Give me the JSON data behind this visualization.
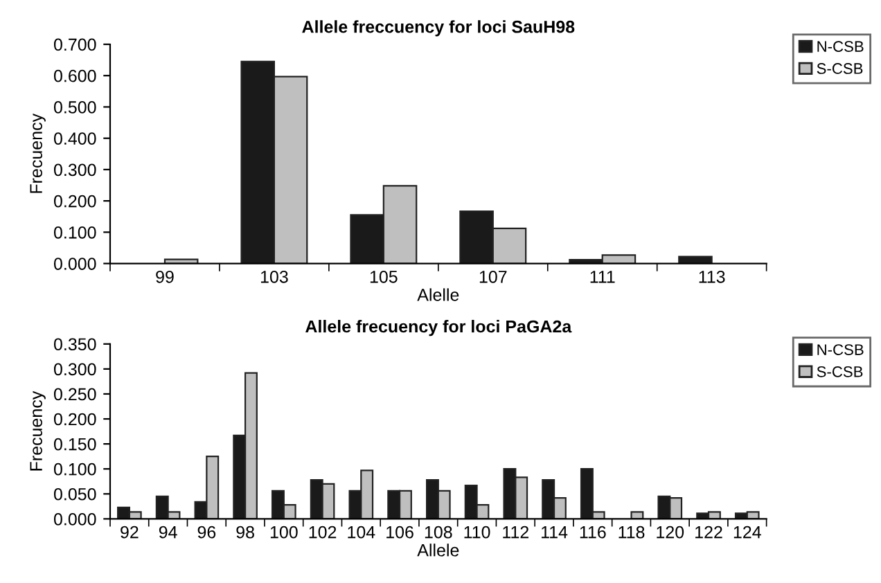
{
  "chart_data": [
    {
      "type": "bar",
      "title": "Allele freccuency for loci SauH98",
      "xlabel": "Alelle",
      "ylabel": "Frecuency",
      "categories": [
        "99",
        "103",
        "105",
        "107",
        "111",
        "113"
      ],
      "series": [
        {
          "name": "N-CSB",
          "color": "#1a1a1a",
          "values": [
            null,
            0.645,
            0.155,
            0.167,
            0.012,
            0.022
          ]
        },
        {
          "name": "S-CSB",
          "color": "#bfbfbf",
          "values": [
            0.013,
            0.597,
            0.248,
            0.112,
            0.027,
            null
          ]
        }
      ],
      "ylim": [
        0,
        0.7
      ],
      "yticks": [
        {
          "value": 0,
          "label": "0.000"
        },
        {
          "value": 0.1,
          "label": "0.100"
        },
        {
          "value": 0.2,
          "label": "0.200"
        },
        {
          "value": 0.3,
          "label": "0.300"
        },
        {
          "value": 0.4,
          "label": "0.400"
        },
        {
          "value": 0.5,
          "label": "0.500"
        },
        {
          "value": 0.6,
          "label": "0.600"
        },
        {
          "value": 0.7,
          "label": "0.700"
        }
      ],
      "grid": false,
      "legend": "top right"
    },
    {
      "type": "bar",
      "title": "Allele frecuency for loci PaGA2a",
      "xlabel": "Allele",
      "ylabel": "Frecuency",
      "categories": [
        "92",
        "94",
        "96",
        "98",
        "100",
        "102",
        "104",
        "106",
        "108",
        "110",
        "112",
        "114",
        "116",
        "118",
        "120",
        "122",
        "124"
      ],
      "series": [
        {
          "name": "N-CSB",
          "color": "#1a1a1a",
          "values": [
            0.023,
            0.045,
            0.034,
            0.167,
            0.056,
            0.078,
            0.056,
            0.056,
            0.078,
            0.067,
            0.1,
            0.078,
            0.1,
            null,
            0.045,
            0.011,
            0.011
          ]
        },
        {
          "name": "S-CSB",
          "color": "#bfbfbf",
          "values": [
            0.014,
            0.014,
            0.125,
            0.292,
            0.028,
            0.07,
            0.097,
            0.056,
            0.056,
            0.028,
            0.083,
            0.042,
            0.014,
            0.014,
            0.042,
            0.014,
            0.014
          ]
        }
      ],
      "ylim": [
        0,
        0.35
      ],
      "yticks": [
        {
          "value": 0,
          "label": "0.000"
        },
        {
          "value": 0.05,
          "label": "0.050"
        },
        {
          "value": 0.1,
          "label": "0.100"
        },
        {
          "value": 0.15,
          "label": "0.150"
        },
        {
          "value": 0.2,
          "label": "0.200"
        },
        {
          "value": 0.25,
          "label": "0.250"
        },
        {
          "value": 0.3,
          "label": "0.300"
        },
        {
          "value": 0.35,
          "label": "0.350"
        }
      ],
      "grid": false,
      "legend": "top right"
    }
  ]
}
